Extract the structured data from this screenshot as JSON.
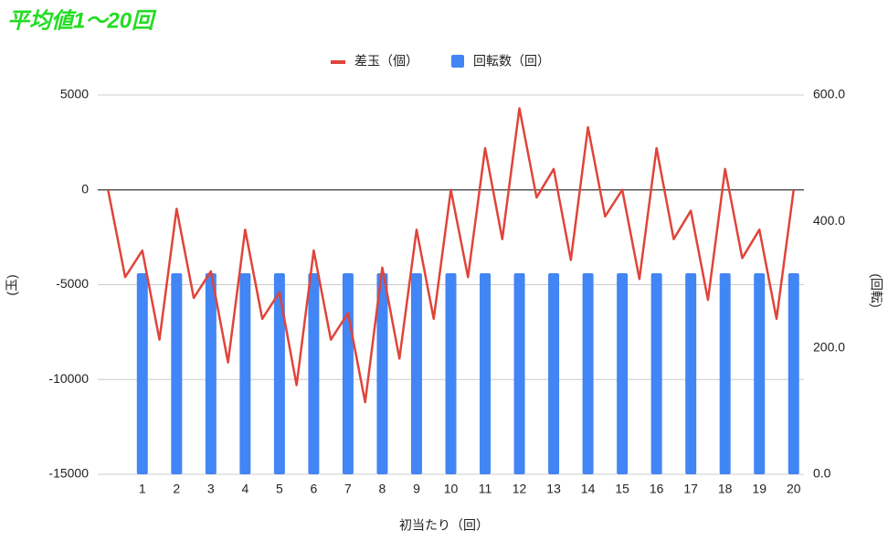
{
  "chart_data": {
    "type": "combo",
    "title": "平均値1〜20回",
    "xlabel": "初当たり（回）",
    "ylabel": "(玉)",
    "y2label": "(回転)",
    "xlim": [
      -0.3,
      20.3
    ],
    "xticks": [
      1,
      2,
      3,
      4,
      5,
      6,
      7,
      8,
      9,
      10,
      11,
      12,
      13,
      14,
      15,
      16,
      17,
      18,
      19,
      20
    ],
    "ylim": [
      -15000,
      5000
    ],
    "yticks": [
      5000,
      0,
      -5000,
      -10000,
      -15000
    ],
    "y2lim": [
      0,
      600
    ],
    "y2ticks": [
      {
        "value": 600,
        "label": "600.0"
      },
      {
        "value": 400,
        "label": "400.0"
      },
      {
        "value": 200,
        "label": "200.0"
      },
      {
        "value": 0,
        "label": "0.0"
      }
    ],
    "grid": true,
    "legend": "top",
    "series": [
      {
        "name": "差玉（個）",
        "type": "line",
        "color": "#e0443a",
        "x": [
          0,
          0.5,
          1,
          1.5,
          2,
          2.5,
          3,
          3.5,
          4,
          4.5,
          5,
          5.5,
          6,
          6.5,
          7,
          7.5,
          8,
          8.5,
          9,
          9.5,
          10,
          10.5,
          11,
          11.5,
          12,
          12.5,
          13,
          13.5,
          14,
          14.5,
          15,
          15.5,
          16,
          16.5,
          17,
          17.5,
          18,
          18.5,
          19,
          19.5,
          20
        ],
        "values": [
          0,
          -4600,
          -3200,
          -7900,
          -1000,
          -5700,
          -4300,
          -9100,
          -2100,
          -6800,
          -5400,
          -10300,
          -3200,
          -7900,
          -6500,
          -11200,
          -4100,
          -8900,
          -2100,
          -6800,
          0,
          -4600,
          2200,
          -2600,
          4300,
          -400,
          1100,
          -3700,
          3300,
          -1400,
          0,
          -4700,
          2200,
          -2600,
          -1100,
          -5800,
          1100,
          -3600,
          -2100,
          -6800,
          0
        ]
      },
      {
        "name": "回転数（回）",
        "type": "bar",
        "axis": "y2",
        "color": "#4285f4",
        "values": [
          318,
          318,
          318,
          318,
          318,
          318,
          318,
          318,
          318,
          318,
          318,
          318,
          318,
          318,
          318,
          318,
          318,
          318,
          318,
          318
        ]
      }
    ]
  }
}
